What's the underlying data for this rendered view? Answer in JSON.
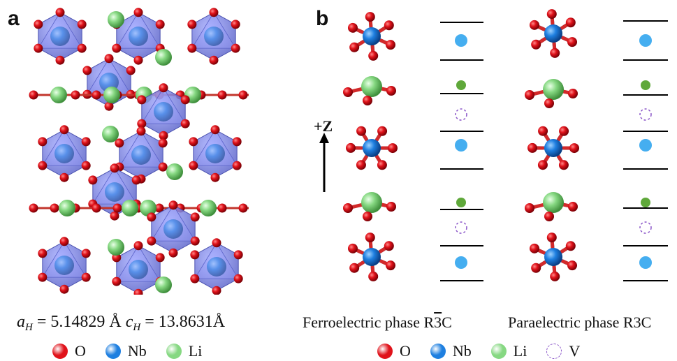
{
  "panels": {
    "a": {
      "label": "a",
      "lattice": {
        "a_symbol": "a",
        "a_sub": "H",
        "a_value": " = 5.14829 Å ",
        "c_symbol": "c",
        "c_sub": "H",
        "c_value": " = 13.8631Å"
      }
    },
    "b": {
      "label": "b",
      "axis_label": "+Z",
      "ferroelectric_label": "Ferroelectric phase R",
      "ferroelectric_digit": "3",
      "ferroelectric_suffix": "C",
      "paraelectric_label": "Paraelectric phase R3C"
    }
  },
  "legend_a": [
    {
      "symbol": "O",
      "color": "#e0121a",
      "style": "filled"
    },
    {
      "symbol": "Nb",
      "color": "#1e7fe0",
      "style": "filled"
    },
    {
      "symbol": "Li",
      "color": "#86d882",
      "style": "filled"
    }
  ],
  "legend_b": [
    {
      "symbol": "O",
      "color": "#e0121a",
      "style": "filled"
    },
    {
      "symbol": "Nb",
      "color": "#1e7fe0",
      "style": "filled"
    },
    {
      "symbol": "Li",
      "color": "#86d882",
      "style": "filled"
    },
    {
      "symbol": "V",
      "color": "#8a55c8",
      "style": "dashed"
    }
  ],
  "colors": {
    "oxygen": "#e0121a",
    "niobium": "#1e7fe0",
    "lithium": "#86d882",
    "lithium_small": "#5fa83a",
    "niobium_site": "#45aef0",
    "vacancy": "#8a55c8",
    "octahedron": "#7d86e8"
  },
  "stacking": {
    "ferroelectric": [
      "Nb",
      "Li",
      "V",
      "Nb",
      "Li",
      "V",
      "Nb"
    ],
    "paraelectric": [
      "Nb",
      "Li",
      "V",
      "Nb",
      "Li",
      "V",
      "Nb"
    ]
  }
}
